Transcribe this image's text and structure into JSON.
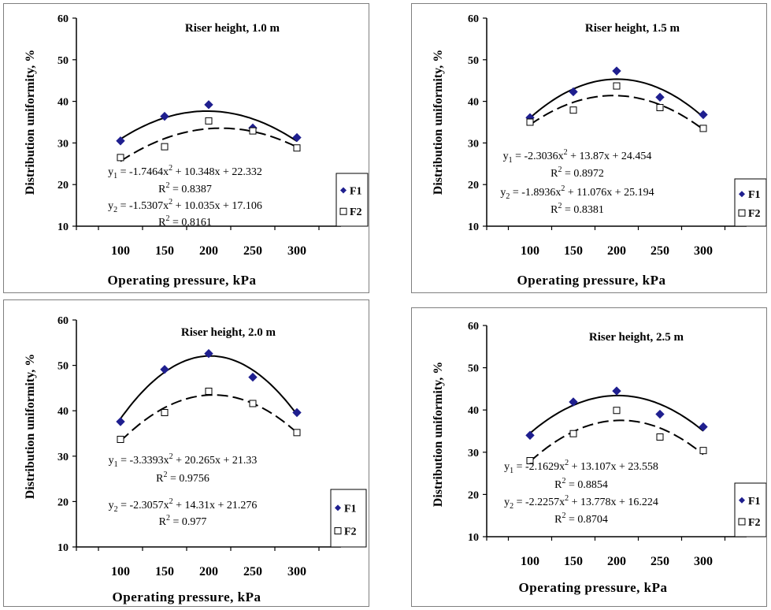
{
  "chart_data": [
    {
      "type": "scatter",
      "title": "Riser height, 1.0 m",
      "xlabel": "Operating pressure, kPa",
      "ylabel": "Distribution uniformity, %",
      "x": [
        100,
        150,
        200,
        250,
        300
      ],
      "xticks": [
        "100",
        "150",
        "200",
        "250",
        "300"
      ],
      "yticks": [
        "10",
        "20",
        "30",
        "40",
        "50",
        "60"
      ],
      "ylim": [
        10,
        60
      ],
      "xlim": [
        50,
        350
      ],
      "series": [
        {
          "name": "F1",
          "values": [
            30.5,
            36.4,
            39.2,
            33.6,
            31.3
          ],
          "marker": "diamond",
          "fit": [
            -1.7464,
            10.348,
            22.332
          ],
          "fit_style": "solid"
        },
        {
          "name": "F2",
          "values": [
            26.5,
            29.1,
            35.3,
            32.9,
            28.8
          ],
          "marker": "square",
          "fit": [
            -1.5307,
            10.035,
            17.106
          ],
          "fit_style": "dashed"
        }
      ],
      "equations": [
        {
          "pre": "y",
          "sub": "1",
          "mid": " = -1.7464x",
          "sup": "2",
          "post": " + 10.348x + 22.332"
        },
        {
          "pre": "R",
          "sub": "",
          "mid": "",
          "sup": "2",
          "post": " = 0.8387"
        },
        {
          "pre": "y",
          "sub": "2",
          "mid": " = -1.5307x",
          "sup": "2",
          "post": " + 10.035x + 17.106"
        },
        {
          "pre": "R",
          "sub": "",
          "mid": "",
          "sup": "2",
          "post": " = 0.8161"
        }
      ],
      "legend": "right-bottom"
    },
    {
      "type": "scatter",
      "title": "Riser height, 1.5 m",
      "xlabel": "Operating pressure, kPa",
      "ylabel": "Distribution uniformity, %",
      "x": [
        100,
        150,
        200,
        250,
        300
      ],
      "xticks": [
        "100",
        "150",
        "200",
        "250",
        "300"
      ],
      "yticks": [
        "10",
        "20",
        "30",
        "40",
        "50",
        "60"
      ],
      "ylim": [
        10,
        60
      ],
      "xlim": [
        50,
        350
      ],
      "series": [
        {
          "name": "F1",
          "values": [
            36.1,
            42.3,
            47.3,
            41.0,
            36.8
          ],
          "marker": "diamond",
          "fit": [
            -2.3036,
            13.87,
            24.454
          ],
          "fit_style": "solid"
        },
        {
          "name": "F2",
          "values": [
            35.0,
            37.9,
            43.7,
            38.5,
            33.5
          ],
          "marker": "square",
          "fit": [
            -1.8936,
            11.076,
            25.194
          ],
          "fit_style": "dashed"
        }
      ],
      "equations": [
        {
          "pre": "y",
          "sub": "1",
          "mid": " = -2.3036x",
          "sup": "2",
          "post": " + 13.87x + 24.454"
        },
        {
          "pre": "R",
          "sub": "",
          "mid": "",
          "sup": "2",
          "post": " = 0.8972"
        },
        {
          "pre": "y",
          "sub": "2",
          "mid": " = -1.8936x",
          "sup": "2",
          "post": " + 11.076x + 25.194"
        },
        {
          "pre": "R",
          "sub": "",
          "mid": "",
          "sup": "2",
          "post": " = 0.8381"
        }
      ],
      "legend": "right-bottom"
    },
    {
      "type": "scatter",
      "title": "Riser height, 2.0 m",
      "xlabel": "Operating pressure, kPa",
      "ylabel": "Distribution uniformity, %",
      "x": [
        100,
        150,
        200,
        250,
        300
      ],
      "xticks": [
        "100",
        "150",
        "200",
        "250",
        "300"
      ],
      "yticks": [
        "10",
        "20",
        "30",
        "40",
        "50",
        "60"
      ],
      "ylim": [
        10,
        60
      ],
      "xlim": [
        50,
        350
      ],
      "series": [
        {
          "name": "F1",
          "values": [
            37.6,
            49.1,
            52.6,
            47.4,
            39.6
          ],
          "marker": "diamond",
          "fit": [
            -3.3393,
            20.265,
            21.33
          ],
          "fit_style": "solid"
        },
        {
          "name": "F2",
          "values": [
            33.7,
            39.6,
            44.3,
            41.6,
            35.2
          ],
          "marker": "square",
          "fit": [
            -2.3057,
            14.31,
            21.276
          ],
          "fit_style": "dashed"
        }
      ],
      "equations": [
        {
          "pre": "y",
          "sub": "1",
          "mid": " = -3.3393x",
          "sup": "2",
          "post": " + 20.265x + 21.33"
        },
        {
          "pre": "R",
          "sub": "",
          "mid": "",
          "sup": "2",
          "post": " = 0.9756"
        },
        {
          "pre": "y",
          "sub": "2",
          "mid": " = -2.3057x",
          "sup": "2",
          "post": " + 14.31x + 21.276"
        },
        {
          "pre": "R",
          "sub": "",
          "mid": "",
          "sup": "2",
          "post": " = 0.977"
        }
      ],
      "legend": "right-bottom"
    },
    {
      "type": "scatter",
      "title": "Riser height, 2.5 m",
      "xlabel": "Operating pressure, kPa",
      "ylabel": "Distribution uniformity, %",
      "x": [
        100,
        150,
        200,
        250,
        300
      ],
      "xticks": [
        "100",
        "150",
        "200",
        "250",
        "300"
      ],
      "yticks": [
        "10",
        "20",
        "30",
        "40",
        "50",
        "60"
      ],
      "ylim": [
        10,
        60
      ],
      "xlim": [
        50,
        350
      ],
      "series": [
        {
          "name": "F1",
          "values": [
            34.0,
            41.9,
            44.5,
            39.0,
            36.0
          ],
          "marker": "diamond",
          "fit": [
            -2.1629,
            13.107,
            23.558
          ],
          "fit_style": "solid"
        },
        {
          "name": "F2",
          "values": [
            28.0,
            34.4,
            39.9,
            33.6,
            30.4
          ],
          "marker": "square",
          "fit": [
            -2.2257,
            13.778,
            16.224
          ],
          "fit_style": "dashed"
        }
      ],
      "equations": [
        {
          "pre": "y",
          "sub": "1",
          "mid": " = -2.1629x",
          "sup": "2",
          "post": " + 13.107x + 23.558"
        },
        {
          "pre": "R",
          "sub": "",
          "mid": "",
          "sup": "2",
          "post": " = 0.8854"
        },
        {
          "pre": "y",
          "sub": "2",
          "mid": " = -2.2257x",
          "sup": "2",
          "post": " + 13.778x + 16.224"
        },
        {
          "pre": "R",
          "sub": "",
          "mid": "",
          "sup": "2",
          "post": " = 0.8704"
        }
      ],
      "legend": "right-bottom"
    }
  ],
  "colors": {
    "f1_marker": "#1f1f8f",
    "axis": "#000000",
    "frame": "#7f7f7f"
  }
}
